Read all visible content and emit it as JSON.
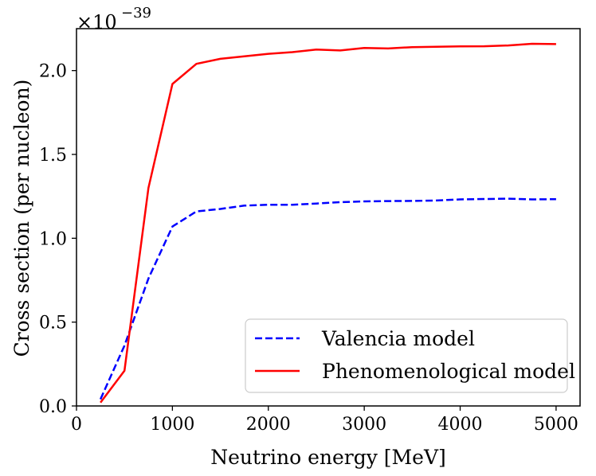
{
  "chart_data": {
    "type": "line",
    "title": "",
    "xlabel": "Neutrino energy [MeV]",
    "ylabel": "Cross section (per nucleon)",
    "y_multiplier": {
      "base": "×10",
      "exponent": "−39"
    },
    "xlim": [
      0,
      5250
    ],
    "ylim": [
      0,
      2.25
    ],
    "x_ticks": [
      0,
      1000,
      2000,
      3000,
      4000,
      5000
    ],
    "x_tick_labels": [
      "0",
      "1000",
      "2000",
      "3000",
      "4000",
      "5000"
    ],
    "y_ticks": [
      0,
      0.5,
      1.0,
      1.5,
      2.0
    ],
    "y_tick_labels": [
      "0.0",
      "0.5",
      "1.0",
      "1.5",
      "2.0"
    ],
    "grid": false,
    "legend_position": "lower-right",
    "series": [
      {
        "name": "Valencia model",
        "color": "#0000ff",
        "style": "dashed",
        "x": [
          250,
          500,
          750,
          1000,
          1250,
          1500,
          1750,
          2000,
          2250,
          2500,
          2750,
          3000,
          3250,
          3500,
          3750,
          4000,
          4250,
          4500,
          4750,
          5000
        ],
        "values": [
          0.04,
          0.36,
          0.76,
          1.07,
          1.16,
          1.175,
          1.195,
          1.2,
          1.2,
          1.207,
          1.215,
          1.22,
          1.222,
          1.223,
          1.225,
          1.232,
          1.234,
          1.236,
          1.232,
          1.233
        ]
      },
      {
        "name": "Phenomenological model",
        "color": "#ff0000",
        "style": "solid",
        "x": [
          250,
          500,
          750,
          1000,
          1250,
          1500,
          1750,
          2000,
          2250,
          2500,
          2750,
          3000,
          3250,
          3500,
          3750,
          4000,
          4250,
          4500,
          4750,
          5000
        ],
        "values": [
          0.02,
          0.21,
          1.3,
          1.92,
          2.04,
          2.07,
          2.085,
          2.1,
          2.11,
          2.125,
          2.12,
          2.135,
          2.132,
          2.14,
          2.142,
          2.144,
          2.145,
          2.15,
          2.16,
          2.158
        ]
      }
    ]
  }
}
